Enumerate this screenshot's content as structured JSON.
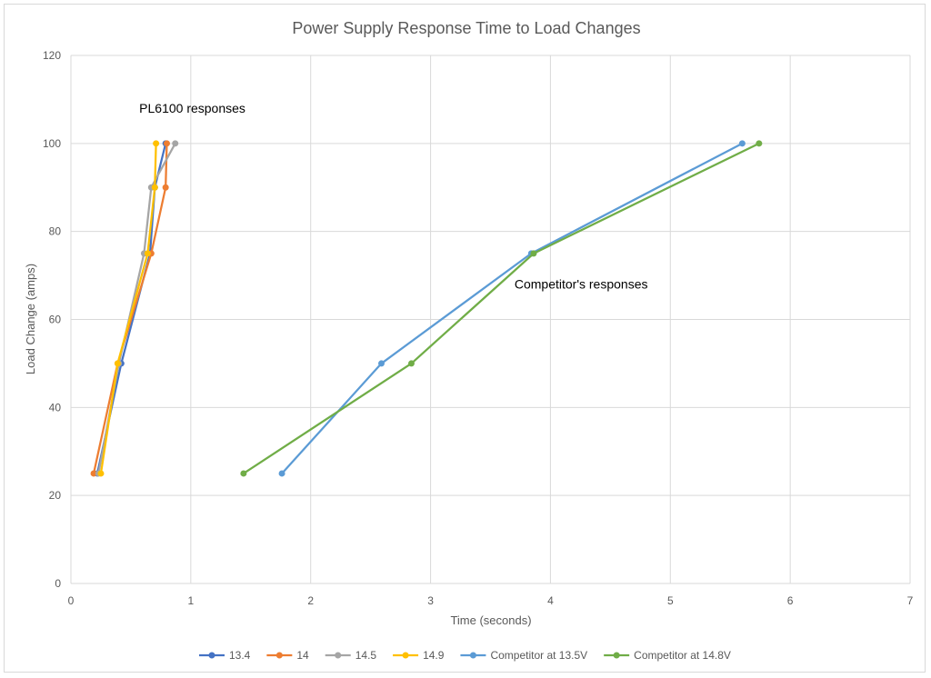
{
  "chart_data": {
    "type": "line",
    "title": "Power Supply Response Time to Load Changes",
    "xlabel": "Time (seconds)",
    "ylabel": "Load Change (amps)",
    "xlim": [
      0,
      7
    ],
    "ylim": [
      0,
      120
    ],
    "xticks": [
      0,
      1,
      2,
      3,
      4,
      5,
      6,
      7
    ],
    "yticks": [
      0,
      20,
      40,
      60,
      80,
      100,
      120
    ],
    "grid": true,
    "legend_position": "bottom",
    "annotations": [
      {
        "text": "PL6100 responses",
        "x": 0.57,
        "y": 107
      },
      {
        "text": "Competitor's responses",
        "x": 3.7,
        "y": 67
      }
    ],
    "series": [
      {
        "name": "13.4",
        "color": "#4472C4",
        "points": [
          [
            0.22,
            25
          ],
          [
            0.42,
            50
          ],
          [
            0.66,
            75
          ],
          [
            0.7,
            90
          ],
          [
            0.79,
            100
          ]
        ]
      },
      {
        "name": "14",
        "color": "#ED7D31",
        "points": [
          [
            0.19,
            25
          ],
          [
            0.39,
            50
          ],
          [
            0.67,
            75
          ],
          [
            0.79,
            90
          ],
          [
            0.8,
            100
          ]
        ]
      },
      {
        "name": "14.5",
        "color": "#A5A5A5",
        "points": [
          [
            0.23,
            25
          ],
          [
            0.4,
            50
          ],
          [
            0.61,
            75
          ],
          [
            0.67,
            90
          ],
          [
            0.87,
            100
          ]
        ]
      },
      {
        "name": "14.9",
        "color": "#FFC000",
        "points": [
          [
            0.25,
            25
          ],
          [
            0.39,
            50
          ],
          [
            0.64,
            75
          ],
          [
            0.7,
            90
          ],
          [
            0.71,
            100
          ]
        ]
      },
      {
        "name": "Competitor at 13.5V",
        "color": "#5B9BD5",
        "points": [
          [
            1.76,
            25
          ],
          [
            2.59,
            50
          ],
          [
            3.84,
            75
          ],
          [
            5.6,
            100
          ]
        ]
      },
      {
        "name": "Competitor at 14.8V",
        "color": "#70AD47",
        "points": [
          [
            1.44,
            25
          ],
          [
            2.84,
            50
          ],
          [
            3.86,
            75
          ],
          [
            5.74,
            100
          ]
        ]
      }
    ]
  }
}
